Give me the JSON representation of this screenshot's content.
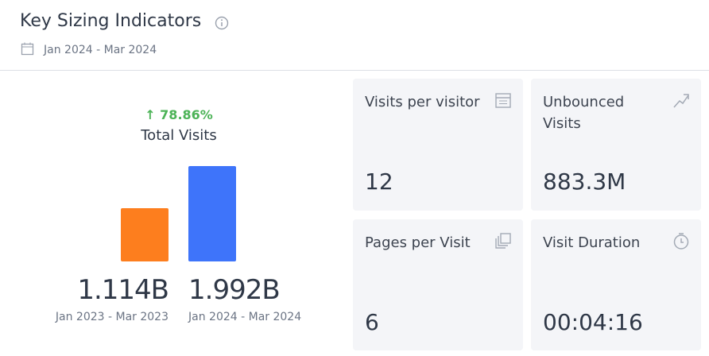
{
  "header": {
    "title": "Key Sizing Indicators",
    "date_range": "Jan 2024 - Mar 2024"
  },
  "total_visits": {
    "change": "78.86%",
    "label": "Total Visits",
    "periods": [
      {
        "value": 1114000000,
        "value_label": "1.114B",
        "range": "Jan 2023 - Mar 2023",
        "color": "#fd7e1e"
      },
      {
        "value": 1992000000,
        "value_label": "1.992B",
        "range": "Jan 2024 - Mar 2024",
        "color": "#3e74fa"
      }
    ]
  },
  "cards": [
    {
      "title": "Visits per visitor",
      "value": "12"
    },
    {
      "title": "Unbounced Visits",
      "value": "883.3M"
    },
    {
      "title": "Pages per Visit",
      "value": "6"
    },
    {
      "title": "Visit Duration",
      "value": "00:04:16"
    }
  ]
}
